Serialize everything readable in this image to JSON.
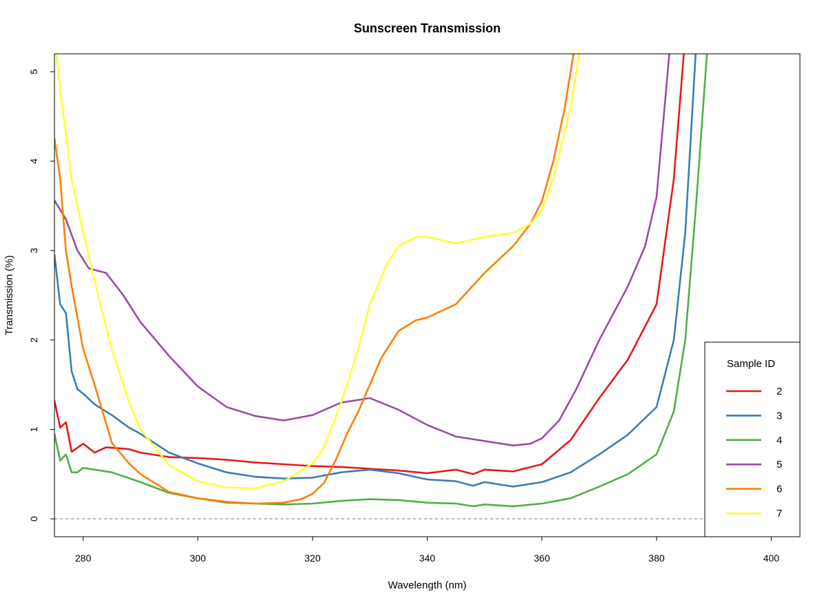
{
  "chart_data": {
    "type": "line",
    "title": "Sunscreen Transmission",
    "xlabel": "Wavelength (nm)",
    "ylabel": "Transmission (%)",
    "xlim": [
      275,
      405
    ],
    "ylim": [
      -0.2,
      5.2
    ],
    "xticks": [
      280,
      300,
      320,
      340,
      360,
      380,
      400
    ],
    "yticks": [
      0,
      1,
      2,
      3,
      4,
      5
    ],
    "reference_line": {
      "y": 0,
      "style": "dashed",
      "color": "#808080"
    },
    "grid": false,
    "legend": {
      "title": "Sample ID",
      "position": "bottom-right"
    },
    "series": [
      {
        "name": "2",
        "color": "#E41A1C",
        "x": [
          275,
          276,
          277,
          278,
          280,
          282,
          284,
          286,
          288,
          290,
          295,
          300,
          305,
          310,
          315,
          320,
          325,
          330,
          335,
          340,
          345,
          348,
          350,
          355,
          360,
          365,
          370,
          375,
          380,
          383,
          385
        ],
        "y": [
          1.32,
          1.02,
          1.08,
          0.75,
          0.84,
          0.74,
          0.8,
          0.79,
          0.78,
          0.74,
          0.69,
          0.68,
          0.66,
          0.63,
          0.61,
          0.59,
          0.58,
          0.56,
          0.54,
          0.51,
          0.55,
          0.5,
          0.55,
          0.53,
          0.61,
          0.88,
          1.35,
          1.78,
          2.4,
          3.8,
          5.4
        ]
      },
      {
        "name": "3",
        "color": "#377EB8",
        "x": [
          275,
          276,
          277,
          278,
          279,
          280,
          282,
          285,
          288,
          290,
          295,
          300,
          305,
          310,
          315,
          320,
          325,
          330,
          335,
          340,
          345,
          348,
          350,
          355,
          360,
          365,
          370,
          375,
          380,
          383,
          385,
          387
        ],
        "y": [
          2.95,
          2.4,
          2.3,
          1.65,
          1.45,
          1.4,
          1.28,
          1.16,
          1.02,
          0.95,
          0.74,
          0.62,
          0.52,
          0.47,
          0.45,
          0.46,
          0.52,
          0.55,
          0.51,
          0.44,
          0.42,
          0.37,
          0.41,
          0.36,
          0.41,
          0.52,
          0.72,
          0.94,
          1.25,
          2.0,
          3.2,
          5.4
        ]
      },
      {
        "name": "4",
        "color": "#4DAF4A",
        "x": [
          275,
          276,
          277,
          278,
          279,
          280,
          285,
          290,
          295,
          300,
          305,
          310,
          315,
          320,
          325,
          330,
          335,
          340,
          345,
          348,
          350,
          355,
          360,
          365,
          370,
          375,
          380,
          383,
          385,
          387,
          389
        ],
        "y": [
          0.95,
          0.65,
          0.72,
          0.52,
          0.52,
          0.57,
          0.52,
          0.41,
          0.29,
          0.23,
          0.18,
          0.17,
          0.16,
          0.17,
          0.2,
          0.22,
          0.21,
          0.18,
          0.17,
          0.14,
          0.16,
          0.14,
          0.17,
          0.23,
          0.36,
          0.5,
          0.72,
          1.2,
          2.0,
          3.6,
          5.4
        ]
      },
      {
        "name": "5",
        "color": "#984EA3",
        "x": [
          275,
          277,
          279,
          281,
          284,
          287,
          290,
          295,
          300,
          305,
          310,
          315,
          320,
          325,
          330,
          335,
          340,
          345,
          350,
          355,
          358,
          360,
          363,
          366,
          370,
          375,
          378,
          380,
          382.5
        ],
        "y": [
          3.56,
          3.35,
          3.0,
          2.8,
          2.75,
          2.5,
          2.2,
          1.82,
          1.48,
          1.25,
          1.15,
          1.1,
          1.16,
          1.3,
          1.35,
          1.22,
          1.05,
          0.92,
          0.87,
          0.82,
          0.84,
          0.9,
          1.1,
          1.45,
          2.0,
          2.6,
          3.05,
          3.6,
          5.4
        ]
      },
      {
        "name": "6",
        "color": "#FF7F00",
        "x": [
          275,
          276,
          277,
          278,
          280,
          282,
          285,
          288,
          290,
          295,
          300,
          305,
          310,
          315,
          318,
          320,
          322,
          324,
          326,
          328,
          330,
          332,
          335,
          338,
          340,
          345,
          350,
          355,
          358,
          360,
          362,
          364,
          366
        ],
        "y": [
          4.25,
          3.8,
          3.0,
          2.6,
          1.9,
          1.5,
          0.85,
          0.62,
          0.5,
          0.3,
          0.23,
          0.19,
          0.17,
          0.18,
          0.22,
          0.28,
          0.4,
          0.65,
          0.95,
          1.2,
          1.5,
          1.8,
          2.1,
          2.22,
          2.25,
          2.4,
          2.75,
          3.05,
          3.3,
          3.55,
          4.0,
          4.6,
          5.4
        ]
      },
      {
        "name": "7",
        "color": "#FFFF33",
        "x": [
          275,
          276,
          278,
          280,
          283,
          285,
          288,
          290,
          295,
          300,
          305,
          310,
          315,
          320,
          322,
          325,
          328,
          330,
          333,
          335,
          338,
          340,
          345,
          350,
          355,
          358,
          360,
          362,
          365,
          367
        ],
        "y": [
          5.4,
          4.8,
          3.8,
          3.2,
          2.4,
          1.9,
          1.3,
          1.0,
          0.6,
          0.42,
          0.35,
          0.34,
          0.42,
          0.62,
          0.8,
          1.3,
          1.9,
          2.4,
          2.85,
          3.05,
          3.15,
          3.15,
          3.08,
          3.15,
          3.2,
          3.3,
          3.45,
          3.8,
          4.6,
          5.4
        ]
      }
    ]
  }
}
